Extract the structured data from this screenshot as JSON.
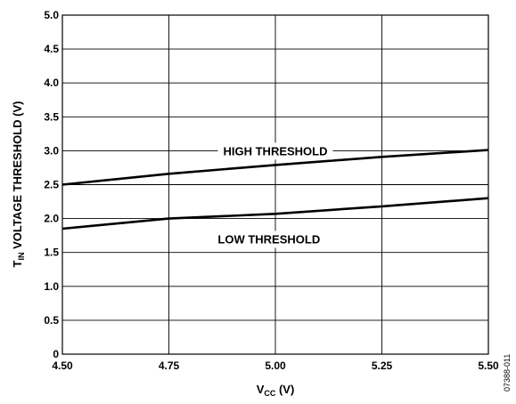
{
  "chart_data": {
    "type": "line",
    "title": "",
    "xlabel": "V",
    "xlabel_sub": "CC",
    "xlabel_unit": " (V)",
    "ylabel": "T",
    "ylabel_sub": "IN",
    "ylabel_rest": " VOLTAGE THRESHOLD (V)",
    "xlim": [
      4.5,
      5.5
    ],
    "ylim": [
      0,
      5.0
    ],
    "x_ticks": [
      4.5,
      4.75,
      5.0,
      5.25,
      5.5
    ],
    "x_tick_labels": [
      "4.50",
      "4.75",
      "5.00",
      "5.25",
      "5.50"
    ],
    "y_ticks": [
      0,
      0.5,
      1.0,
      1.5,
      2.0,
      2.5,
      3.0,
      3.5,
      4.0,
      4.5,
      5.0
    ],
    "y_tick_labels": [
      "0",
      "0.5",
      "1.0",
      "1.5",
      "2.0",
      "2.5",
      "3.0",
      "3.5",
      "4.0",
      "4.5",
      "5.0"
    ],
    "grid": true,
    "series": [
      {
        "name": "HIGH THRESHOLD",
        "x": [
          4.5,
          4.75,
          5.0,
          5.25,
          5.5
        ],
        "values": [
          2.5,
          2.66,
          2.79,
          2.91,
          3.01
        ]
      },
      {
        "name": "LOW THRESHOLD",
        "x": [
          4.5,
          4.75,
          5.0,
          5.25,
          5.5
        ],
        "values": [
          1.85,
          2.0,
          2.07,
          2.18,
          2.3
        ]
      }
    ],
    "figure_id": "07388-011"
  }
}
